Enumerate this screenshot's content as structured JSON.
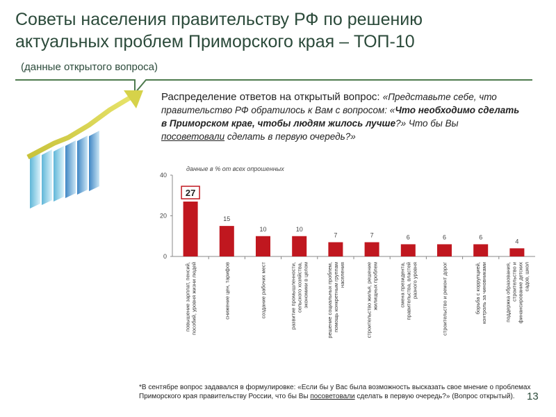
{
  "header": {
    "title_line1": "Советы населения правительству РФ по решению",
    "title_line2": "актуальных проблем Приморского края – ТОП-10",
    "subtitle": "(данные открытого вопроса)"
  },
  "question": {
    "intro": "Распределение ответов на открытый вопрос: ",
    "part1": "«Представьте себе, что правительство РФ обратилось к Вам с вопросом: «",
    "part2_bold": "Что необходимо сделать в Приморском крае, чтобы людям жилось лучше",
    "part3": "?» Что бы Вы ",
    "part4_under": "посоветовали",
    "part5": " сделать в первую очередь?»"
  },
  "chart_data": {
    "type": "bar",
    "note": "данные в % от всех опрошенных",
    "ylim": [
      0,
      40
    ],
    "yticks": [
      0,
      20,
      40
    ],
    "categories": [
      "повышение зарплат, пенсий, пособий, уровня жизни людей",
      "снижение цен, тарифов",
      "создание рабочих мест",
      "развитие промышленности, сельского хозяйства, экономики в целом",
      "решение социальных проблем, помощь конкретным группам населения",
      "строительство жилья, решение жилищных проблем",
      "смена президента, правительства, властей разного уровня",
      "строительство и ремонт дорог",
      "борьба с коррупцией, контроль за чиновниками",
      "поддержка образования, строительство и финансирование детских садов, школ"
    ],
    "values": [
      27,
      15,
      10,
      10,
      7,
      7,
      6,
      6,
      6,
      4
    ],
    "value_labels": [
      "27",
      "15",
      "10",
      "10",
      "7",
      "7",
      "6",
      "6",
      "6",
      "4"
    ],
    "highlighted_index": 0,
    "bar_color": "#c0171f",
    "grid": false
  },
  "footnote": {
    "part1": "*В сентябре вопрос задавался в формулировке: «Если бы у Вас была возможность высказать свое мнение о проблемах Приморского края правительству России, что бы Вы ",
    "part2_under": "посоветовали",
    "part3": " сделать в первую очередь?» (Вопрос открытый)."
  },
  "page_number": "13",
  "colors": {
    "accent_green": "#4d7a4d",
    "title_color": "#2b4a3a"
  }
}
